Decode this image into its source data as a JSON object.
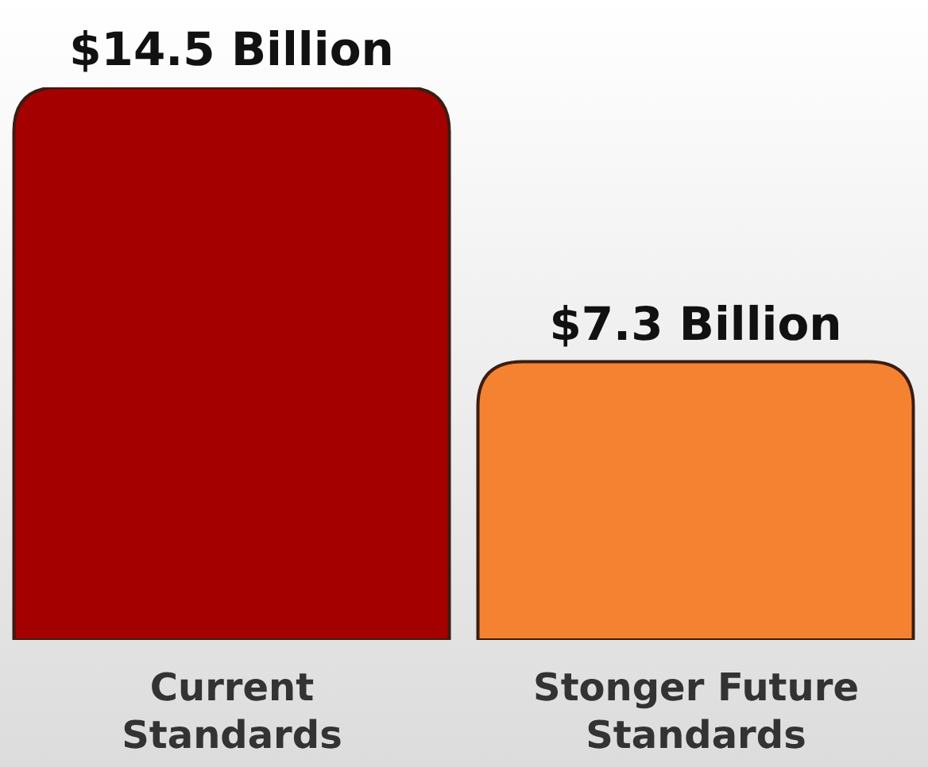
{
  "chart_data": {
    "type": "bar",
    "categories": [
      "Current Standards",
      "Stonger Future Standards"
    ],
    "values": [
      14.5,
      7.3
    ],
    "colors": [
      "#a50000",
      "#f58231"
    ],
    "value_labels": [
      "$14.5 Billion",
      "$7.3 Billion"
    ],
    "grid": false,
    "legend": false
  }
}
